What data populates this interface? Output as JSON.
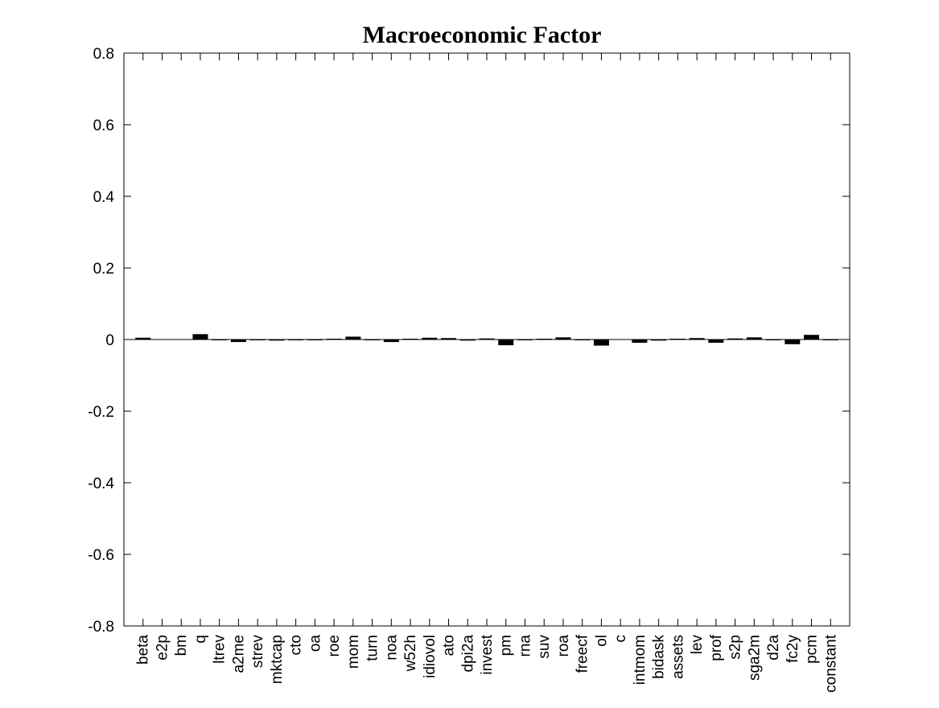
{
  "chart_data": {
    "type": "bar",
    "title": "Macroeconomic Factor",
    "xlabel": "",
    "ylabel": "",
    "ylim": [
      -0.8,
      0.8
    ],
    "yticks": [
      0.8,
      0.6,
      0.4,
      0.2,
      0,
      -0.2,
      -0.4,
      -0.6,
      -0.8
    ],
    "ytick_labels": [
      "0.8",
      "0.6",
      "0.4",
      "0.2",
      "0",
      "-0.2",
      "-0.4",
      "-0.6",
      "-0.8"
    ],
    "grid": false,
    "categories": [
      "beta",
      "e2p",
      "bm",
      "q",
      "ltrev",
      "a2me",
      "strev",
      "mktcap",
      "cto",
      "oa",
      "roe",
      "mom",
      "turn",
      "noa",
      "w52h",
      "idiovol",
      "ato",
      "dpi2a",
      "invest",
      "pm",
      "rna",
      "suv",
      "roa",
      "freecf",
      "ol",
      "c",
      "intmom",
      "bidask",
      "assets",
      "lev",
      "prof",
      "s2p",
      "sga2m",
      "d2a",
      "fc2y",
      "pcm",
      "constant"
    ],
    "values": [
      0.005,
      0.0,
      0.0,
      0.015,
      -0.002,
      -0.007,
      -0.001,
      -0.003,
      -0.002,
      -0.001,
      0.002,
      0.008,
      -0.001,
      -0.007,
      0.002,
      0.005,
      0.004,
      -0.003,
      0.003,
      -0.016,
      -0.002,
      0.001,
      0.006,
      -0.001,
      -0.017,
      0.0,
      -0.009,
      -0.003,
      0.002,
      0.004,
      -0.009,
      0.003,
      0.006,
      -0.002,
      -0.013,
      0.013,
      -0.002
    ],
    "bar_color": "#000000"
  }
}
